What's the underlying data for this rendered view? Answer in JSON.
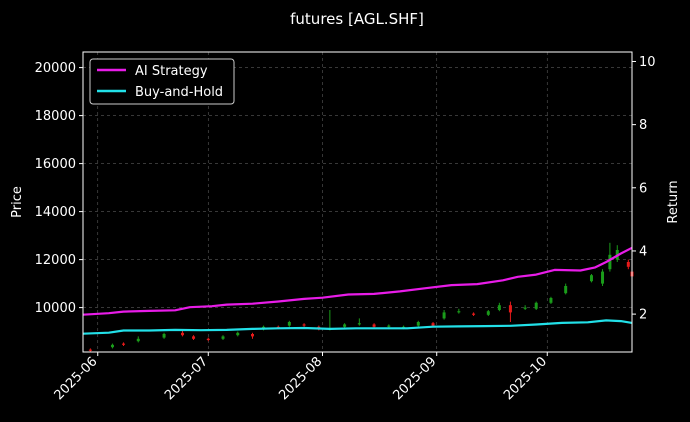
{
  "chart_data": {
    "type": "line",
    "title": "futures [AGL.SHF]",
    "xlabel": "",
    "ylabel_left": "Price",
    "ylabel_right": "Return",
    "x_ticks": [
      "2025-06",
      "2025-07",
      "2025-08",
      "2025-09",
      "2025-10"
    ],
    "x_range": [
      "2025-05-28",
      "2025-10-24"
    ],
    "y_left_ticks": [
      10000,
      12000,
      14000,
      16000,
      18000,
      20000
    ],
    "y_left_range": [
      8150,
      20650
    ],
    "y_right_ticks": [
      2,
      4,
      6,
      8,
      10
    ],
    "y_right_range": [
      0.8,
      10.3
    ],
    "grid": true,
    "legend_position": "top-left",
    "colors": {
      "background": "#000000",
      "ai_strategy": "#e81ce8",
      "buy_and_hold": "#22e0e8",
      "candle_up": "#1a9c1a",
      "candle_down": "#e81a1a",
      "grid": "#5a5a5a",
      "axis": "#ffffff"
    },
    "series": [
      {
        "name": "AI Strategy",
        "axis": "right",
        "points": [
          [
            "2025-05-28",
            1.98
          ],
          [
            "2025-06-04",
            2.03
          ],
          [
            "2025-06-08",
            2.08
          ],
          [
            "2025-06-15",
            2.1
          ],
          [
            "2025-06-22",
            2.12
          ],
          [
            "2025-06-26",
            2.22
          ],
          [
            "2025-07-02",
            2.25
          ],
          [
            "2025-07-06",
            2.3
          ],
          [
            "2025-07-13",
            2.33
          ],
          [
            "2025-07-20",
            2.4
          ],
          [
            "2025-07-27",
            2.48
          ],
          [
            "2025-08-01",
            2.52
          ],
          [
            "2025-08-08",
            2.62
          ],
          [
            "2025-08-15",
            2.64
          ],
          [
            "2025-08-22",
            2.72
          ],
          [
            "2025-08-29",
            2.82
          ],
          [
            "2025-09-05",
            2.92
          ],
          [
            "2025-09-12",
            2.95
          ],
          [
            "2025-09-19",
            3.07
          ],
          [
            "2025-09-23",
            3.18
          ],
          [
            "2025-09-28",
            3.25
          ],
          [
            "2025-10-03",
            3.4
          ],
          [
            "2025-10-10",
            3.38
          ],
          [
            "2025-10-14",
            3.48
          ],
          [
            "2025-10-17",
            3.65
          ],
          [
            "2025-10-21",
            3.92
          ],
          [
            "2025-10-24",
            4.1
          ]
        ]
      },
      {
        "name": "Buy-and-Hold",
        "axis": "right",
        "points": [
          [
            "2025-05-28",
            1.38
          ],
          [
            "2025-06-04",
            1.41
          ],
          [
            "2025-06-08",
            1.48
          ],
          [
            "2025-06-15",
            1.48
          ],
          [
            "2025-06-22",
            1.5
          ],
          [
            "2025-06-29",
            1.49
          ],
          [
            "2025-07-06",
            1.5
          ],
          [
            "2025-07-13",
            1.53
          ],
          [
            "2025-07-20",
            1.55
          ],
          [
            "2025-07-27",
            1.56
          ],
          [
            "2025-08-03",
            1.53
          ],
          [
            "2025-08-10",
            1.55
          ],
          [
            "2025-08-17",
            1.55
          ],
          [
            "2025-08-24",
            1.55
          ],
          [
            "2025-08-31",
            1.6
          ],
          [
            "2025-09-07",
            1.61
          ],
          [
            "2025-09-14",
            1.62
          ],
          [
            "2025-09-21",
            1.63
          ],
          [
            "2025-09-28",
            1.67
          ],
          [
            "2025-10-05",
            1.72
          ],
          [
            "2025-10-12",
            1.74
          ],
          [
            "2025-10-17",
            1.8
          ],
          [
            "2025-10-21",
            1.78
          ],
          [
            "2025-10-24",
            1.72
          ]
        ]
      }
    ],
    "candles": [
      {
        "x": "2025-05-30",
        "o": 8250,
        "c": 8200,
        "h": 8300,
        "l": 8150
      },
      {
        "x": "2025-06-05",
        "o": 8350,
        "c": 8450,
        "h": 8500,
        "l": 8300
      },
      {
        "x": "2025-06-08",
        "o": 8500,
        "c": 8450,
        "h": 8550,
        "l": 8400
      },
      {
        "x": "2025-06-12",
        "o": 8600,
        "c": 8700,
        "h": 8800,
        "l": 8550
      },
      {
        "x": "2025-06-19",
        "o": 8750,
        "c": 8900,
        "h": 8950,
        "l": 8700
      },
      {
        "x": "2025-06-24",
        "o": 8950,
        "c": 8850,
        "h": 9050,
        "l": 8800
      },
      {
        "x": "2025-06-27",
        "o": 8800,
        "c": 8700,
        "h": 8850,
        "l": 8650
      },
      {
        "x": "2025-07-01",
        "o": 8700,
        "c": 8650,
        "h": 8750,
        "l": 8600
      },
      {
        "x": "2025-07-05",
        "o": 8700,
        "c": 8800,
        "h": 8850,
        "l": 8650
      },
      {
        "x": "2025-07-09",
        "o": 8850,
        "c": 8950,
        "h": 9000,
        "l": 8800
      },
      {
        "x": "2025-07-13",
        "o": 8900,
        "c": 8800,
        "h": 8950,
        "l": 8700
      },
      {
        "x": "2025-07-16",
        "o": 9100,
        "c": 9200,
        "h": 9250,
        "l": 9050
      },
      {
        "x": "2025-07-20",
        "o": 9200,
        "c": 9150,
        "h": 9250,
        "l": 9100
      },
      {
        "x": "2025-07-23",
        "o": 9250,
        "c": 9400,
        "h": 9450,
        "l": 9200
      },
      {
        "x": "2025-07-27",
        "o": 9300,
        "c": 9250,
        "h": 9350,
        "l": 9200
      },
      {
        "x": "2025-07-31",
        "o": 9200,
        "c": 9100,
        "h": 9250,
        "l": 9050
      },
      {
        "x": "2025-08-03",
        "o": 9100,
        "c": 9150,
        "h": 9900,
        "l": 9050
      },
      {
        "x": "2025-08-07",
        "o": 9200,
        "c": 9300,
        "h": 9350,
        "l": 9150
      },
      {
        "x": "2025-08-11",
        "o": 9300,
        "c": 9350,
        "h": 9550,
        "l": 9250
      },
      {
        "x": "2025-08-15",
        "o": 9300,
        "c": 9200,
        "h": 9350,
        "l": 9150
      },
      {
        "x": "2025-08-19",
        "o": 9200,
        "c": 9250,
        "h": 9300,
        "l": 9100
      },
      {
        "x": "2025-08-23",
        "o": 9150,
        "c": 9200,
        "h": 9250,
        "l": 9100
      },
      {
        "x": "2025-08-27",
        "o": 9250,
        "c": 9400,
        "h": 9450,
        "l": 9200
      },
      {
        "x": "2025-08-31",
        "o": 9350,
        "c": 9250,
        "h": 9400,
        "l": 9200
      },
      {
        "x": "2025-09-03",
        "o": 9550,
        "c": 9800,
        "h": 9900,
        "l": 9500
      },
      {
        "x": "2025-09-07",
        "o": 9800,
        "c": 9850,
        "h": 9950,
        "l": 9750
      },
      {
        "x": "2025-09-11",
        "o": 9750,
        "c": 9700,
        "h": 9800,
        "l": 9650
      },
      {
        "x": "2025-09-15",
        "o": 9700,
        "c": 9850,
        "h": 9900,
        "l": 9650
      },
      {
        "x": "2025-09-18",
        "o": 9900,
        "c": 10100,
        "h": 10200,
        "l": 9850
      },
      {
        "x": "2025-09-21",
        "o": 10100,
        "c": 9800,
        "h": 10250,
        "l": 9400
      },
      {
        "x": "2025-09-25",
        "o": 9950,
        "c": 10000,
        "h": 10100,
        "l": 9900
      },
      {
        "x": "2025-09-28",
        "o": 9950,
        "c": 10200,
        "h": 10250,
        "l": 9900
      },
      {
        "x": "2025-10-02",
        "o": 10200,
        "c": 10400,
        "h": 10450,
        "l": 10150
      },
      {
        "x": "2025-10-06",
        "o": 10600,
        "c": 10900,
        "h": 11000,
        "l": 10550
      },
      {
        "x": "2025-10-13",
        "o": 11100,
        "c": 11350,
        "h": 11400,
        "l": 11050
      },
      {
        "x": "2025-10-16",
        "o": 11000,
        "c": 11500,
        "h": 11600,
        "l": 10900
      },
      {
        "x": "2025-10-18",
        "o": 11600,
        "c": 12200,
        "h": 12700,
        "l": 11500
      },
      {
        "x": "2025-10-20",
        "o": 12000,
        "c": 12400,
        "h": 12600,
        "l": 11900
      },
      {
        "x": "2025-10-23",
        "o": 11900,
        "c": 11700,
        "h": 12000,
        "l": 11600
      },
      {
        "x": "2025-10-24",
        "o": 11500,
        "c": 11300,
        "h": 11550,
        "l": 11200
      }
    ]
  }
}
